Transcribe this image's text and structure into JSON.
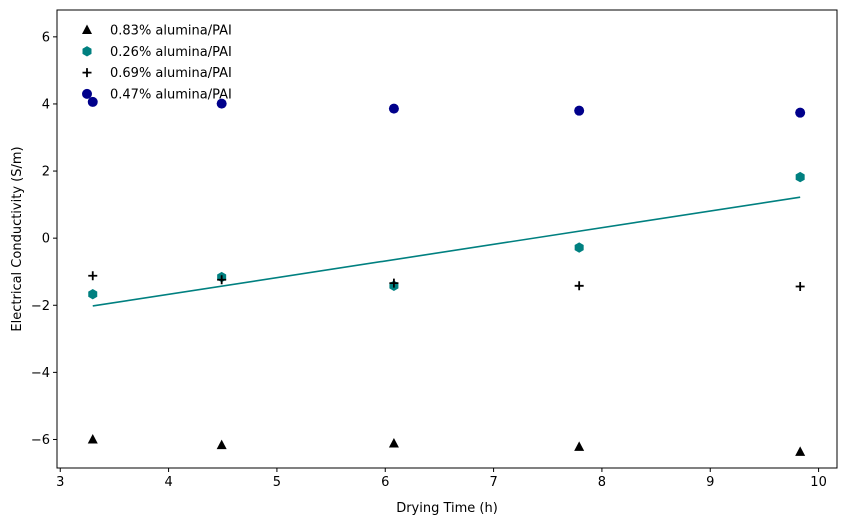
{
  "chart_data": {
    "type": "scatter",
    "title": "",
    "xlabel": "Drying Time (h)",
    "ylabel": "Electrical Conductivity (S/m)",
    "xlim": [
      2.97,
      10.17
    ],
    "ylim": [
      -6.85,
      6.8
    ],
    "x_ticks": [
      3,
      4,
      5,
      6,
      7,
      8,
      9,
      10
    ],
    "y_ticks": [
      -6,
      -4,
      -2,
      0,
      2,
      4,
      6
    ],
    "x_tick_labels": [
      "3",
      "4",
      "5",
      "6",
      "7",
      "8",
      "9",
      "10"
    ],
    "y_tick_labels": [
      "−6",
      "−4",
      "−2",
      "0",
      "2",
      "4",
      "6"
    ],
    "grid": false,
    "legend_position": "top-left",
    "x": [
      3.3,
      4.49,
      6.08,
      7.79,
      9.83
    ],
    "series": [
      {
        "name": "0.83% alumina/PAI",
        "marker": "triangle",
        "color": "#000000",
        "values": [
          -6.0,
          -6.17,
          -6.12,
          -6.22,
          -6.37
        ]
      },
      {
        "name": "0.26% alumina/PAI",
        "marker": "hexagon",
        "color": "#008080",
        "values": [
          -1.67,
          -1.16,
          -1.42,
          -0.28,
          1.82
        ]
      },
      {
        "name": "0.69% alumina/PAI",
        "marker": "plus",
        "color": "#000000",
        "values": [
          -1.12,
          -1.24,
          -1.34,
          -1.42,
          -1.44
        ]
      },
      {
        "name": "0.47% alumina/PAI",
        "marker": "circle",
        "color": "#00008b",
        "values": [
          4.06,
          4.01,
          3.86,
          3.8,
          3.74
        ]
      }
    ],
    "trend_line": {
      "color": "#008080",
      "x": [
        3.3,
        9.83
      ],
      "y": [
        -2.02,
        1.22
      ]
    }
  }
}
